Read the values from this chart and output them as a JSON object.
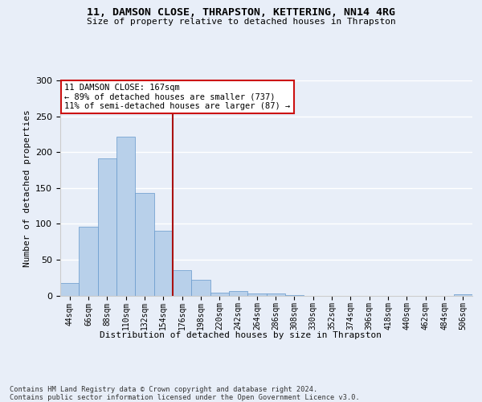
{
  "title": "11, DAMSON CLOSE, THRAPSTON, KETTERING, NN14 4RG",
  "subtitle": "Size of property relative to detached houses in Thrapston",
  "xlabel": "Distribution of detached houses by size in Thrapston",
  "ylabel": "Number of detached properties",
  "bar_values": [
    17,
    96,
    191,
    222,
    143,
    90,
    35,
    22,
    4,
    6,
    3,
    3,
    1,
    0,
    0,
    0,
    0,
    0,
    0,
    0,
    0,
    2
  ],
  "bar_labels": [
    "44sqm",
    "66sqm",
    "88sqm",
    "110sqm",
    "132sqm",
    "154sqm",
    "176sqm",
    "198sqm",
    "220sqm",
    "242sqm",
    "264sqm",
    "286sqm",
    "308sqm",
    "330sqm",
    "352sqm",
    "374sqm",
    "396sqm",
    "418sqm",
    "440sqm",
    "462sqm",
    "484sqm",
    "506sqm"
  ],
  "bar_color": "#b8d0ea",
  "bar_edge_color": "#6699cc",
  "vline_x_index": 5.5,
  "vline_color": "#aa1111",
  "annotation_text": "11 DAMSON CLOSE: 167sqm\n← 89% of detached houses are smaller (737)\n11% of semi-detached houses are larger (87) →",
  "annotation_box_facecolor": "#ffffff",
  "annotation_box_edgecolor": "#cc1111",
  "ylim": [
    0,
    300
  ],
  "yticks": [
    0,
    50,
    100,
    150,
    200,
    250,
    300
  ],
  "bg_color": "#e8eef8",
  "footer_text": "Contains HM Land Registry data © Crown copyright and database right 2024.\nContains public sector information licensed under the Open Government Licence v3.0."
}
